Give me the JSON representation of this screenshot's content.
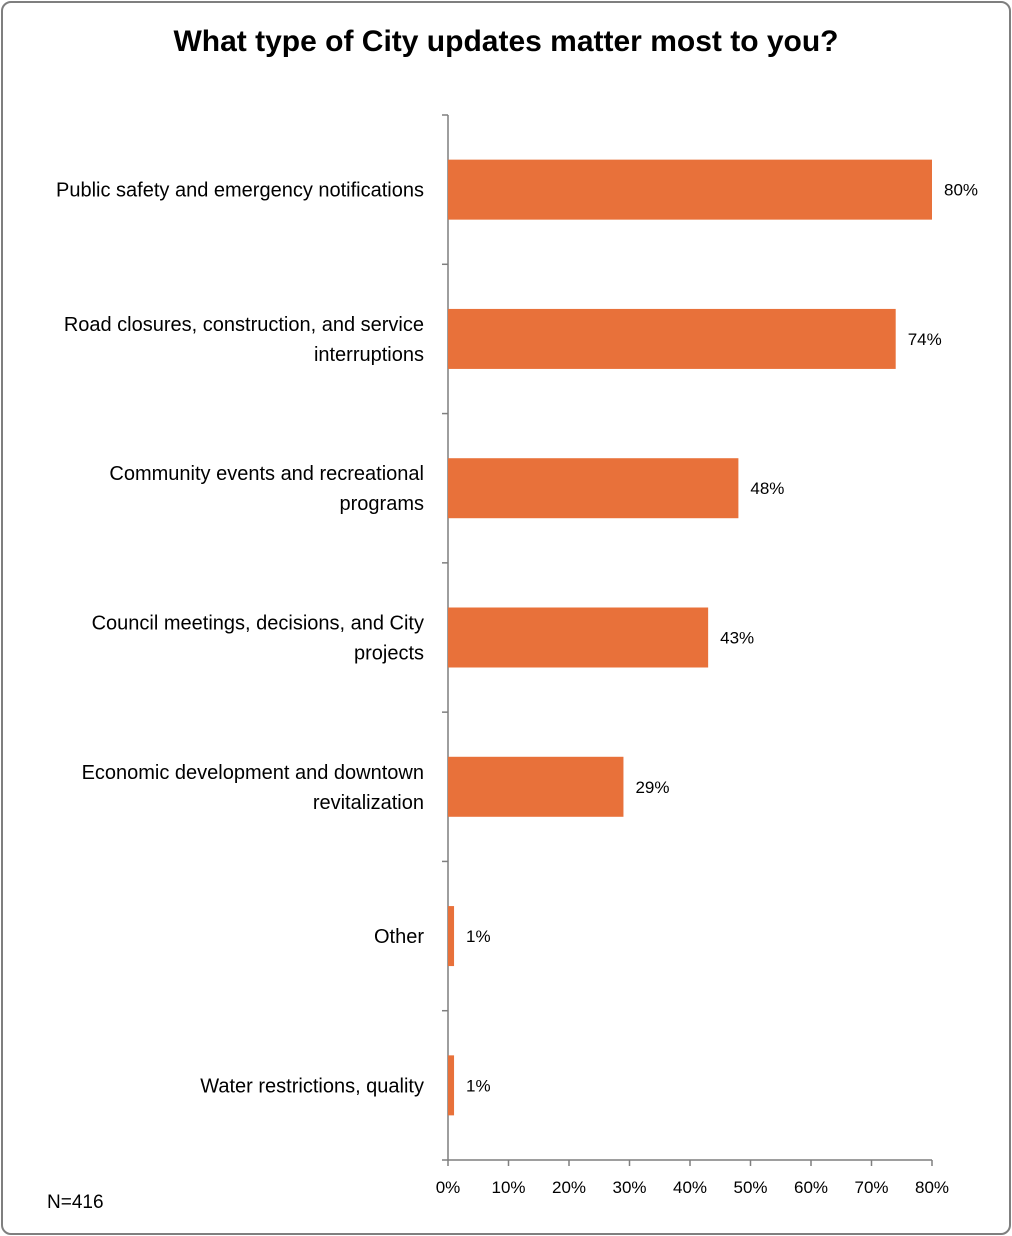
{
  "chart_data": {
    "type": "bar",
    "orientation": "horizontal",
    "title": "What type of City updates matter most to you?",
    "categories": [
      [
        "Public safety and emergency notifications"
      ],
      [
        "Road closures, construction, and service",
        "interruptions"
      ],
      [
        "Community events and recreational",
        "programs"
      ],
      [
        "Council meetings, decisions, and City",
        "projects"
      ],
      [
        "Economic development and downtown",
        "revitalization"
      ],
      [
        "Other"
      ],
      [
        "Water restrictions, quality"
      ]
    ],
    "values": [
      80,
      74,
      48,
      43,
      29,
      1,
      1
    ],
    "value_labels": [
      "80%",
      "74%",
      "48%",
      "43%",
      "29%",
      "1%",
      "1%"
    ],
    "xlim": [
      0,
      80
    ],
    "xticks": [
      0,
      10,
      20,
      30,
      40,
      50,
      60,
      70,
      80
    ],
    "xtick_labels": [
      "0%",
      "10%",
      "20%",
      "30%",
      "40%",
      "50%",
      "60%",
      "70%",
      "80%"
    ],
    "bar_color": "#E8713A",
    "axis_color": "#7f7f7f",
    "xlabel": "",
    "ylabel": ""
  },
  "footnote": "N=416"
}
